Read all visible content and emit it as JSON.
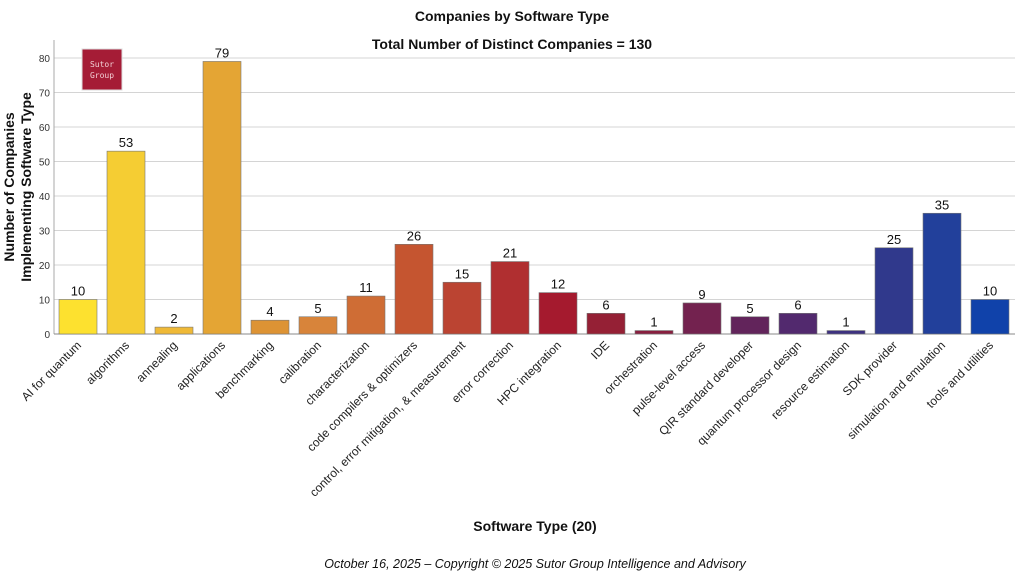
{
  "chart_data": {
    "type": "bar",
    "title": "Companies by Software Type",
    "subtitle": "Total Number of Distinct Companies = 130",
    "xlabel": "Software Type (20)",
    "ylabel": [
      "Number of Companies",
      "Implementing Software Type"
    ],
    "ylim": [
      0,
      85
    ],
    "yticks": [
      0,
      10,
      20,
      30,
      40,
      50,
      60,
      70,
      80
    ],
    "grid": true,
    "categories": [
      "AI for quantum",
      "algorithms",
      "annealing",
      "applications",
      "benchmarking",
      "calibration",
      "characterization",
      "code compilers & optimizers",
      "control, error mitigation, & measurement",
      "error correction",
      "HPC integration",
      "IDE",
      "orchestration",
      "pulse-level access",
      "QIR standard developer",
      "quantum processor design",
      "resource estimation",
      "SDK provider",
      "simulation and emulation",
      "tools and utilities"
    ],
    "values": [
      10,
      53,
      2,
      79,
      4,
      5,
      11,
      26,
      15,
      21,
      12,
      6,
      1,
      9,
      5,
      6,
      1,
      25,
      35,
      10
    ],
    "colors": [
      "#fde12f",
      "#f5cd33",
      "#efb937",
      "#e4a534",
      "#dd9334",
      "#d8843a",
      "#cf6d35",
      "#c55530",
      "#bb4432",
      "#b02f30",
      "#a51a2e",
      "#952035",
      "#881f3f",
      "#73224f",
      "#62245b",
      "#52296e",
      "#3e3280",
      "#30398c",
      "#22409b",
      "#1042aa"
    ]
  },
  "logo": {
    "text": "Sutor Group",
    "color": "#a51c36"
  },
  "footer": "October 16, 2025 – Copyright © 2025 Sutor Group Intelligence and Advisory"
}
